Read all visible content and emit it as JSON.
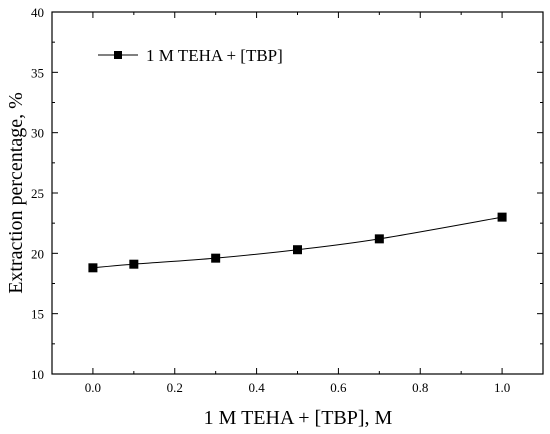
{
  "chart_data": {
    "type": "line",
    "xlabel": "1 M TEHA + [TBP], M",
    "ylabel": "Extraction percentage, %",
    "xlim": [
      -0.1,
      1.1
    ],
    "ylim": [
      10,
      40
    ],
    "x_ticks": [
      "0.0",
      "0.2",
      "0.4",
      "0.6",
      "0.8",
      "1.0"
    ],
    "y_ticks": [
      "10",
      "15",
      "20",
      "25",
      "30",
      "35",
      "40"
    ],
    "grid": false,
    "legend_position": "top-left",
    "series": [
      {
        "name": "1 M TEHA + [TBP]",
        "marker": "square",
        "color": "#000000",
        "x": [
          0.0,
          0.1,
          0.3,
          0.5,
          0.7,
          1.0
        ],
        "y": [
          18.8,
          19.1,
          19.6,
          20.3,
          21.2,
          23.0
        ]
      }
    ]
  }
}
